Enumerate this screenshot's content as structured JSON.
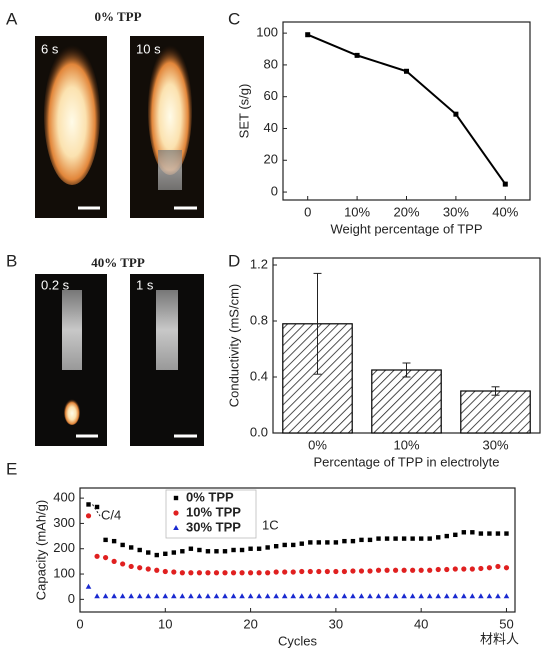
{
  "photo_panels": [
    {
      "label": "A",
      "title": "0% TPP",
      "frames": [
        "6 s",
        "10 s"
      ]
    },
    {
      "label": "B",
      "title": "40% TPP",
      "frames": [
        "0.2 s",
        "1 s"
      ]
    }
  ],
  "watermark": "材料人",
  "chart_data": [
    {
      "type": "line",
      "panel_label": "C",
      "x_label": "Weight percentage of TPP",
      "y_label": "SET (s/g)",
      "categories": [
        "0",
        "10%",
        "20%",
        "30%",
        "40%"
      ],
      "values": [
        99,
        86,
        76,
        49,
        5
      ],
      "color": "#000000",
      "ylim": [
        -5,
        107
      ],
      "yticks": [
        0,
        20,
        40,
        60,
        80,
        100
      ]
    },
    {
      "type": "bar",
      "panel_label": "D",
      "x_label": "Percentage of TPP in electrolyte",
      "y_label": "Conductivity (mS/cm)",
      "categories": [
        "0%",
        "10%",
        "30%"
      ],
      "values": [
        0.78,
        0.45,
        0.3
      ],
      "errors": [
        0.36,
        0.05,
        0.03
      ],
      "color": "#000000",
      "ylim": [
        0,
        1.25
      ],
      "yticks": [
        {
          "value": 0,
          "label": "0.0"
        },
        0.4,
        0.8,
        1.2
      ]
    },
    {
      "type": "scatter",
      "panel_label": "E",
      "x_label": "Cycles",
      "y_label": "Capacity (mAh/g)",
      "annotations": [
        "C/4",
        "1C"
      ],
      "x": [
        1,
        2,
        3,
        4,
        5,
        6,
        7,
        8,
        9,
        10,
        11,
        12,
        13,
        14,
        15,
        16,
        17,
        18,
        19,
        20,
        21,
        22,
        23,
        24,
        25,
        26,
        27,
        28,
        29,
        30,
        31,
        32,
        33,
        34,
        35,
        36,
        37,
        38,
        39,
        40,
        41,
        42,
        43,
        44,
        45,
        46,
        47,
        48,
        49,
        50
      ],
      "series": [
        {
          "name": "0% TPP",
          "color": "#000000",
          "values": [
            375,
            365,
            235,
            230,
            215,
            205,
            195,
            185,
            175,
            180,
            185,
            190,
            200,
            195,
            190,
            190,
            190,
            195,
            195,
            200,
            200,
            205,
            210,
            215,
            215,
            220,
            225,
            225,
            225,
            225,
            230,
            230,
            235,
            235,
            240,
            240,
            240,
            240,
            240,
            240,
            240,
            245,
            250,
            255,
            265,
            265,
            260,
            260,
            260,
            260
          ]
        },
        {
          "name": "10% TPP",
          "color": "#e02020",
          "values": [
            330,
            170,
            165,
            150,
            140,
            130,
            125,
            120,
            115,
            110,
            108,
            105,
            105,
            105,
            105,
            105,
            105,
            105,
            105,
            105,
            105,
            105,
            108,
            108,
            108,
            110,
            110,
            110,
            110,
            110,
            110,
            112,
            112,
            112,
            115,
            115,
            115,
            115,
            115,
            115,
            115,
            118,
            118,
            120,
            120,
            120,
            122,
            125,
            130,
            125
          ]
        },
        {
          "name": "30% TPP",
          "color": "#1a2ad0",
          "values": [
            50,
            12,
            12,
            12,
            12,
            12,
            12,
            12,
            12,
            12,
            12,
            12,
            12,
            12,
            12,
            12,
            12,
            12,
            12,
            12,
            12,
            12,
            12,
            12,
            12,
            12,
            12,
            12,
            12,
            12,
            12,
            12,
            12,
            12,
            12,
            12,
            12,
            12,
            12,
            12,
            12,
            12,
            12,
            12,
            12,
            12,
            12,
            12,
            12,
            12
          ]
        }
      ],
      "xlim": [
        0,
        51
      ],
      "xticks": [
        0,
        10,
        20,
        30,
        40,
        50
      ],
      "ylim": [
        -50,
        440
      ],
      "yticks": [
        0,
        100,
        200,
        300,
        400
      ]
    }
  ]
}
